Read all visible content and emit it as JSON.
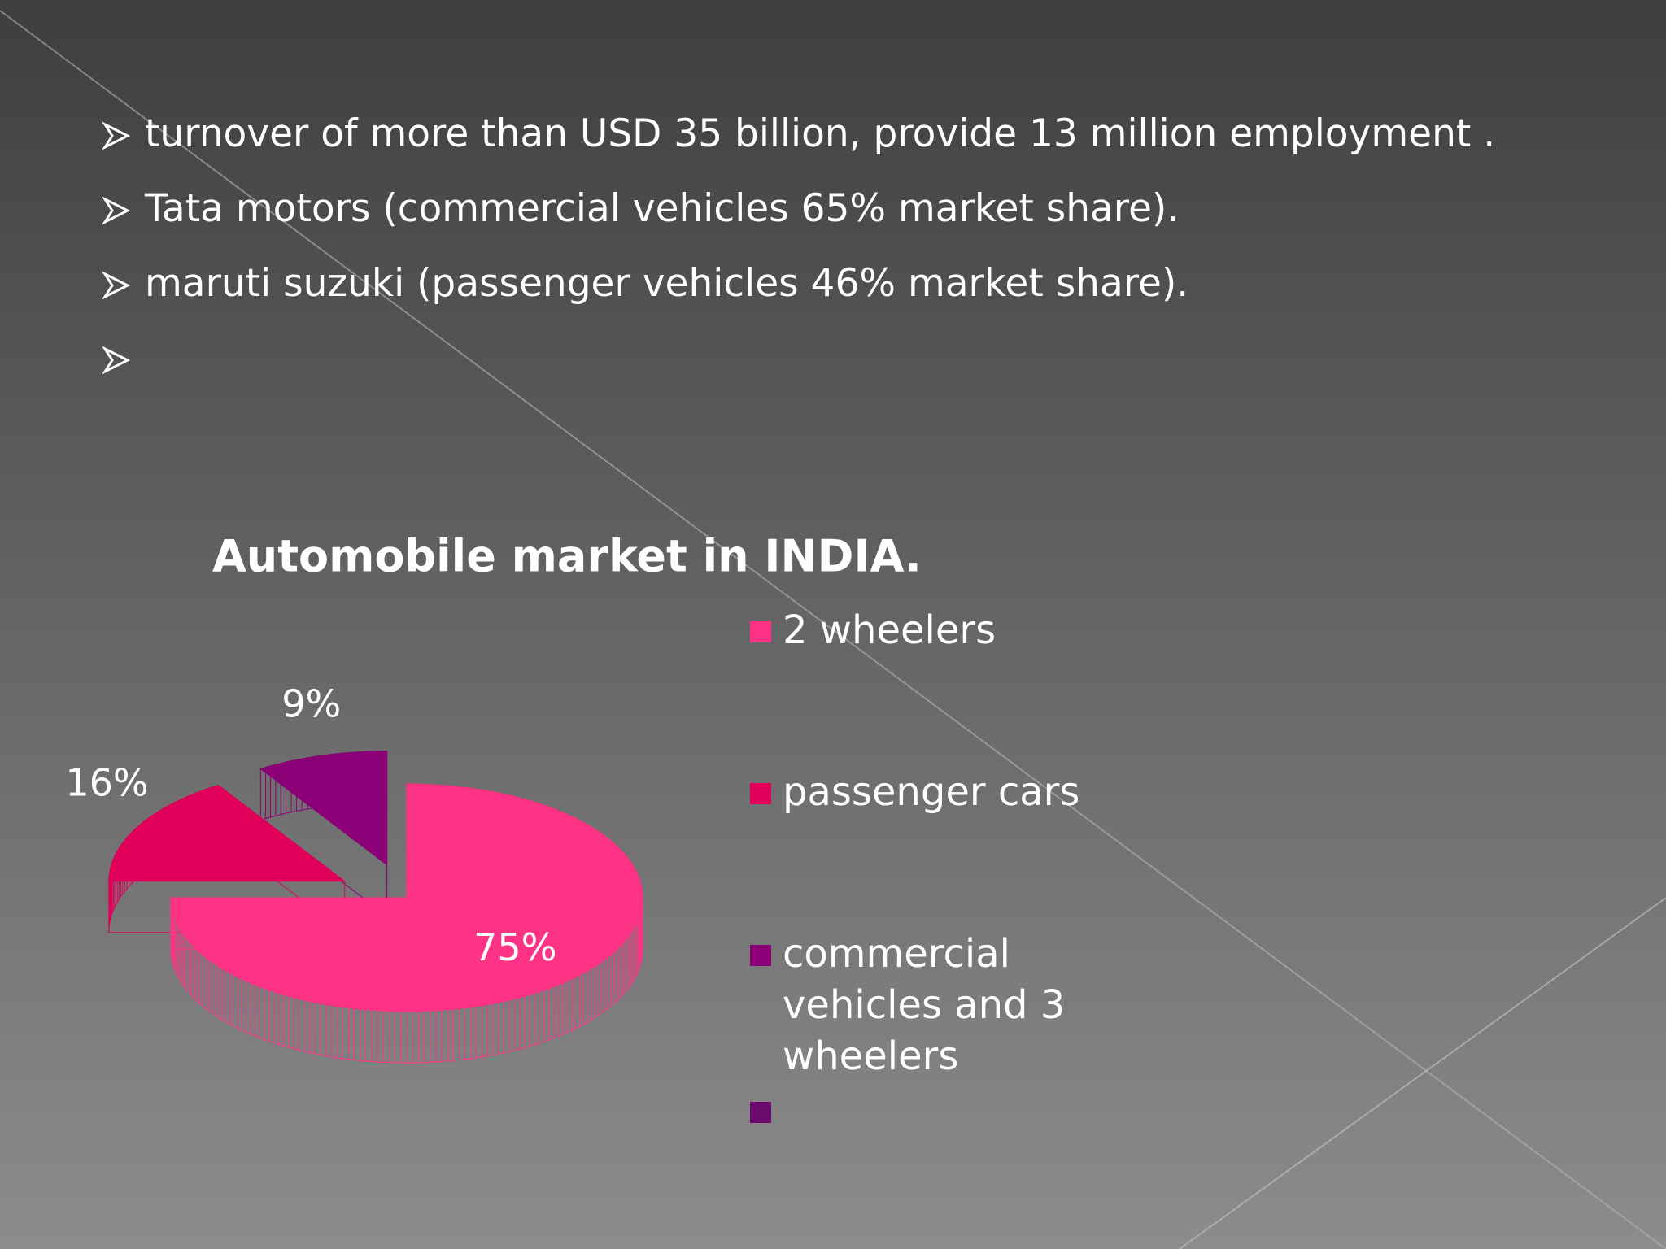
{
  "bullets": [
    "turnover of more than USD 35 billion, provide 13 million employment .",
    "Tata motors (commercial vehicles 65% market share).",
    "maruti suzuki (passenger vehicles 46% market share)."
  ],
  "chart_data": {
    "type": "pie",
    "title": "Automobile market in INDIA.",
    "categories": [
      "2 wheelers",
      "passenger cars",
      "commercial vehicles and 3 wheelers"
    ],
    "values": [
      75,
      16,
      9
    ],
    "value_labels": [
      "75%",
      "16%",
      "9%"
    ],
    "colors": [
      "#ff3385",
      "#e0005a",
      "#8b0077"
    ],
    "legend": "right"
  }
}
